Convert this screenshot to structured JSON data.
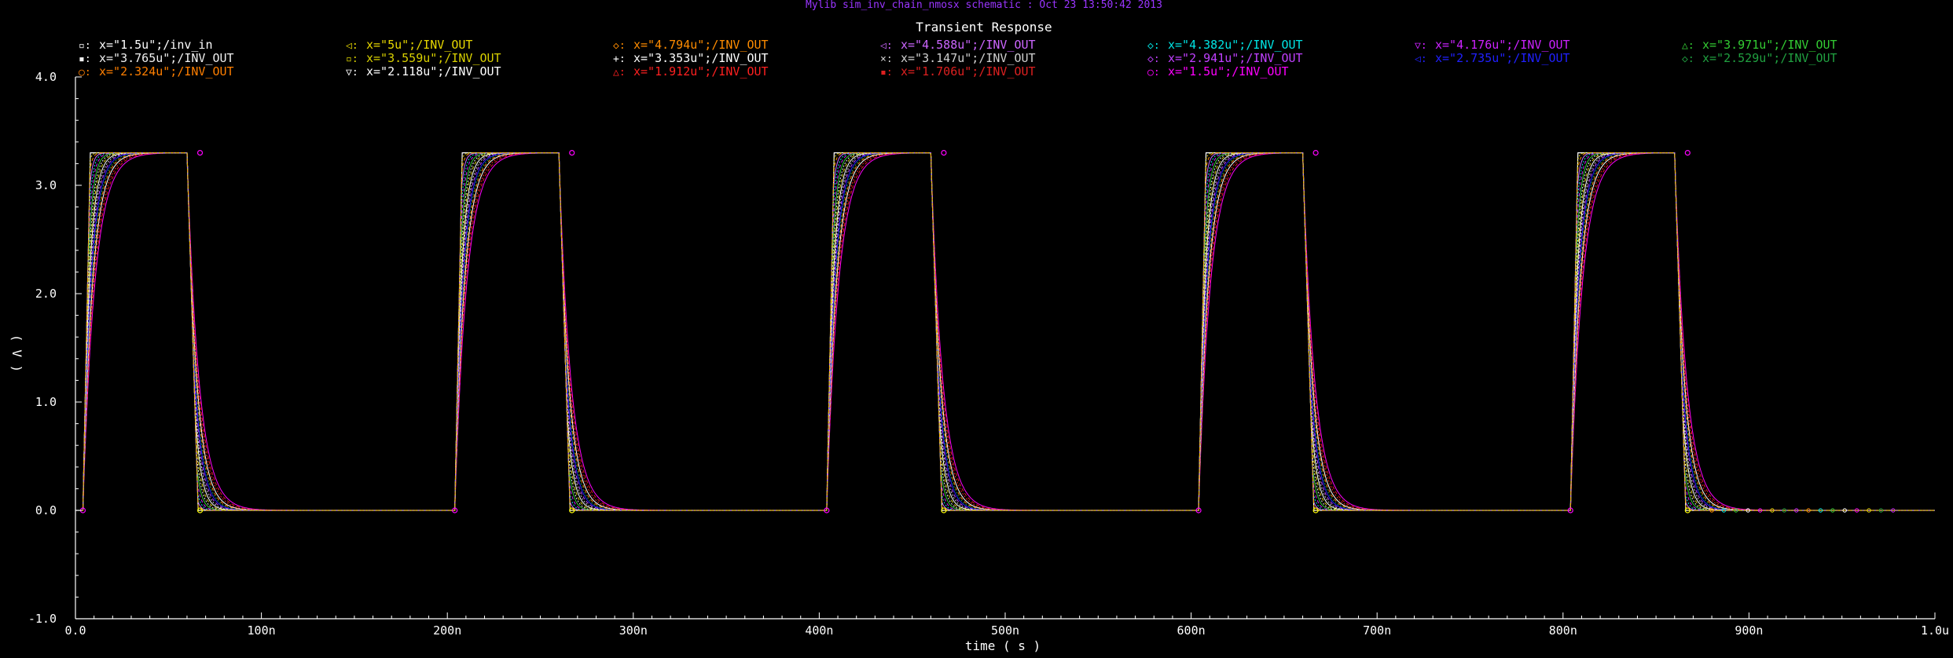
{
  "window_title": "Mylib sim_inv_chain_nmosx schematic : Oct 23 13:50:42 2013",
  "chart_data": {
    "type": "line",
    "title": "Transient Response",
    "xlabel": "time ( s )",
    "ylabel": "( V )",
    "xlim": [
      0,
      1e-06
    ],
    "ylim": [
      -1.0,
      4.0
    ],
    "x_ticks": [
      {
        "v": 0,
        "label": "0.0"
      },
      {
        "v": 1e-07,
        "label": "100n"
      },
      {
        "v": 2e-07,
        "label": "200n"
      },
      {
        "v": 3e-07,
        "label": "300n"
      },
      {
        "v": 4e-07,
        "label": "400n"
      },
      {
        "v": 5e-07,
        "label": "500n"
      },
      {
        "v": 6e-07,
        "label": "600n"
      },
      {
        "v": 7e-07,
        "label": "700n"
      },
      {
        "v": 8e-07,
        "label": "800n"
      },
      {
        "v": 9e-07,
        "label": "900n"
      },
      {
        "v": 1e-06,
        "label": "1.0u"
      }
    ],
    "y_ticks": [
      {
        "v": 4.0,
        "label": "4.0"
      },
      {
        "v": 3.0,
        "label": "3.0"
      },
      {
        "v": 2.0,
        "label": "2.0"
      },
      {
        "v": 1.0,
        "label": "1.0"
      },
      {
        "v": 0.0,
        "label": "0.0"
      },
      {
        "v": -1.0,
        "label": "-1.0"
      }
    ],
    "grid": false,
    "legend_placement": "top",
    "period_ns": 200,
    "input_edges_ns": {
      "rise_start": 4,
      "rise_end": 8,
      "fall_start": 60,
      "fall_end": 66
    },
    "v_high": 3.3,
    "v_low": 0.0,
    "series": [
      {
        "marker": "▫:",
        "label": "x=\"1.5u\";/inv_in",
        "color": "#ffffff",
        "kind": "input"
      },
      {
        "marker": "◁:",
        "label": "x=\"5u\";/INV_OUT",
        "color": "#e8d800",
        "tau_ns": 1.0
      },
      {
        "marker": "◇:",
        "label": "x=\"4.794u\";/INV_OUT",
        "color": "#ff8c00",
        "tau_ns": 1.3
      },
      {
        "marker": "◁:",
        "label": "x=\"4.588u\";/INV_OUT",
        "color": "#cc66ff",
        "tau_ns": 1.6
      },
      {
        "marker": "◇:",
        "label": "x=\"4.382u\";/INV_OUT",
        "color": "#00e5e5",
        "tau_ns": 1.9
      },
      {
        "marker": "▽:",
        "label": "x=\"4.176u\";/INV_OUT",
        "color": "#cc22ff",
        "tau_ns": 2.2
      },
      {
        "marker": "△:",
        "label": "x=\"3.971u\";/INV_OUT",
        "color": "#33cc33",
        "tau_ns": 2.5
      },
      {
        "marker": "▪:",
        "label": "x=\"3.765u\";/INV_OUT",
        "color": "#f0f0f0",
        "tau_ns": 2.8
      },
      {
        "marker": "▫:",
        "label": "x=\"3.559u\";/INV_OUT",
        "color": "#d8d000",
        "tau_ns": 3.1
      },
      {
        "marker": "+:",
        "label": "x=\"3.353u\";/INV_OUT",
        "color": "#ffffff",
        "tau_ns": 3.4
      },
      {
        "marker": "×:",
        "label": "x=\"3.147u\";/INV_OUT",
        "color": "#d0d0d0",
        "tau_ns": 3.7
      },
      {
        "marker": "◇:",
        "label": "x=\"2.941u\";/INV_OUT",
        "color": "#c040ff",
        "tau_ns": 4.0
      },
      {
        "marker": "◁:",
        "label": "x=\"2.735u\";/INV_OUT",
        "color": "#2020ff",
        "tau_ns": 4.3
      },
      {
        "marker": "◇:",
        "label": "x=\"2.529u\";/INV_OUT",
        "color": "#20a040",
        "tau_ns": 4.6
      },
      {
        "marker": "○:",
        "label": "x=\"2.324u\";/INV_OUT",
        "color": "#ff7f00",
        "tau_ns": 4.9
      },
      {
        "marker": "▽:",
        "label": "x=\"2.118u\";/INV_OUT",
        "color": "#ffffff",
        "tau_ns": 5.2
      },
      {
        "marker": "△:",
        "label": "x=\"1.912u\";/INV_OUT",
        "color": "#ff2020",
        "tau_ns": 5.6
      },
      {
        "marker": "▪:",
        "label": "x=\"1.706u\";/INV_OUT",
        "color": "#dd2020",
        "tau_ns": 6.0
      },
      {
        "marker": "○:",
        "label": "x=\"1.5u\";/INV_OUT",
        "color": "#ff00ff",
        "tau_ns": 6.4
      }
    ]
  }
}
